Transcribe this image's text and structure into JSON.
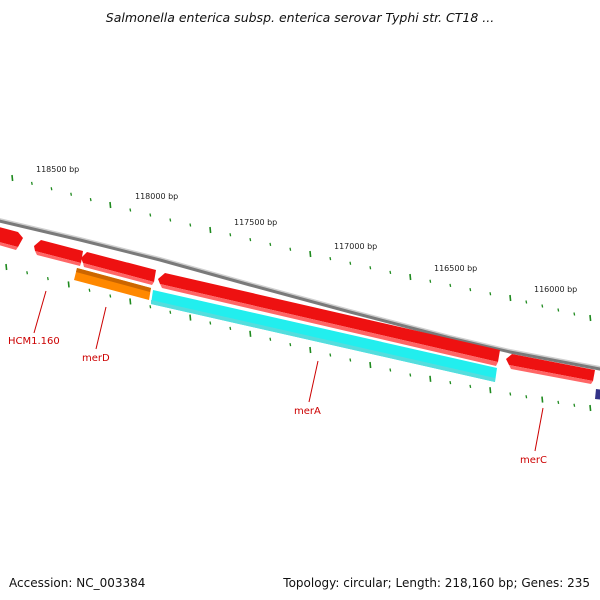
{
  "title": "Salmonella enterica subsp. enterica serovar Typhi str. CT18 ...",
  "footer": {
    "accession": "Accession: NC_003384",
    "stats": "Topology: circular; Length: 218,160 bp; Genes: 235"
  },
  "ticks": {
    "labels": [
      {
        "bp": 118500,
        "text": "118500 bp"
      },
      {
        "bp": 118000,
        "text": "118000 bp"
      },
      {
        "bp": 117500,
        "text": "117500 bp"
      },
      {
        "bp": 117000,
        "text": "117000 bp"
      },
      {
        "bp": 116500,
        "text": "116500 bp"
      },
      {
        "bp": 116000,
        "text": "116000 bp"
      }
    ]
  },
  "gene_labels": [
    {
      "text": "HCM1.160"
    },
    {
      "text": "merD"
    },
    {
      "text": "merA"
    },
    {
      "text": "merC"
    }
  ],
  "colors": {
    "backbone": "#777777",
    "gene_red": "#ee1111",
    "gene_orange": "#ff8800",
    "gene_cyan": "#22eeee",
    "gene_navy": "#333388",
    "tick": "#1e8a1e",
    "label": "#cc0000"
  }
}
